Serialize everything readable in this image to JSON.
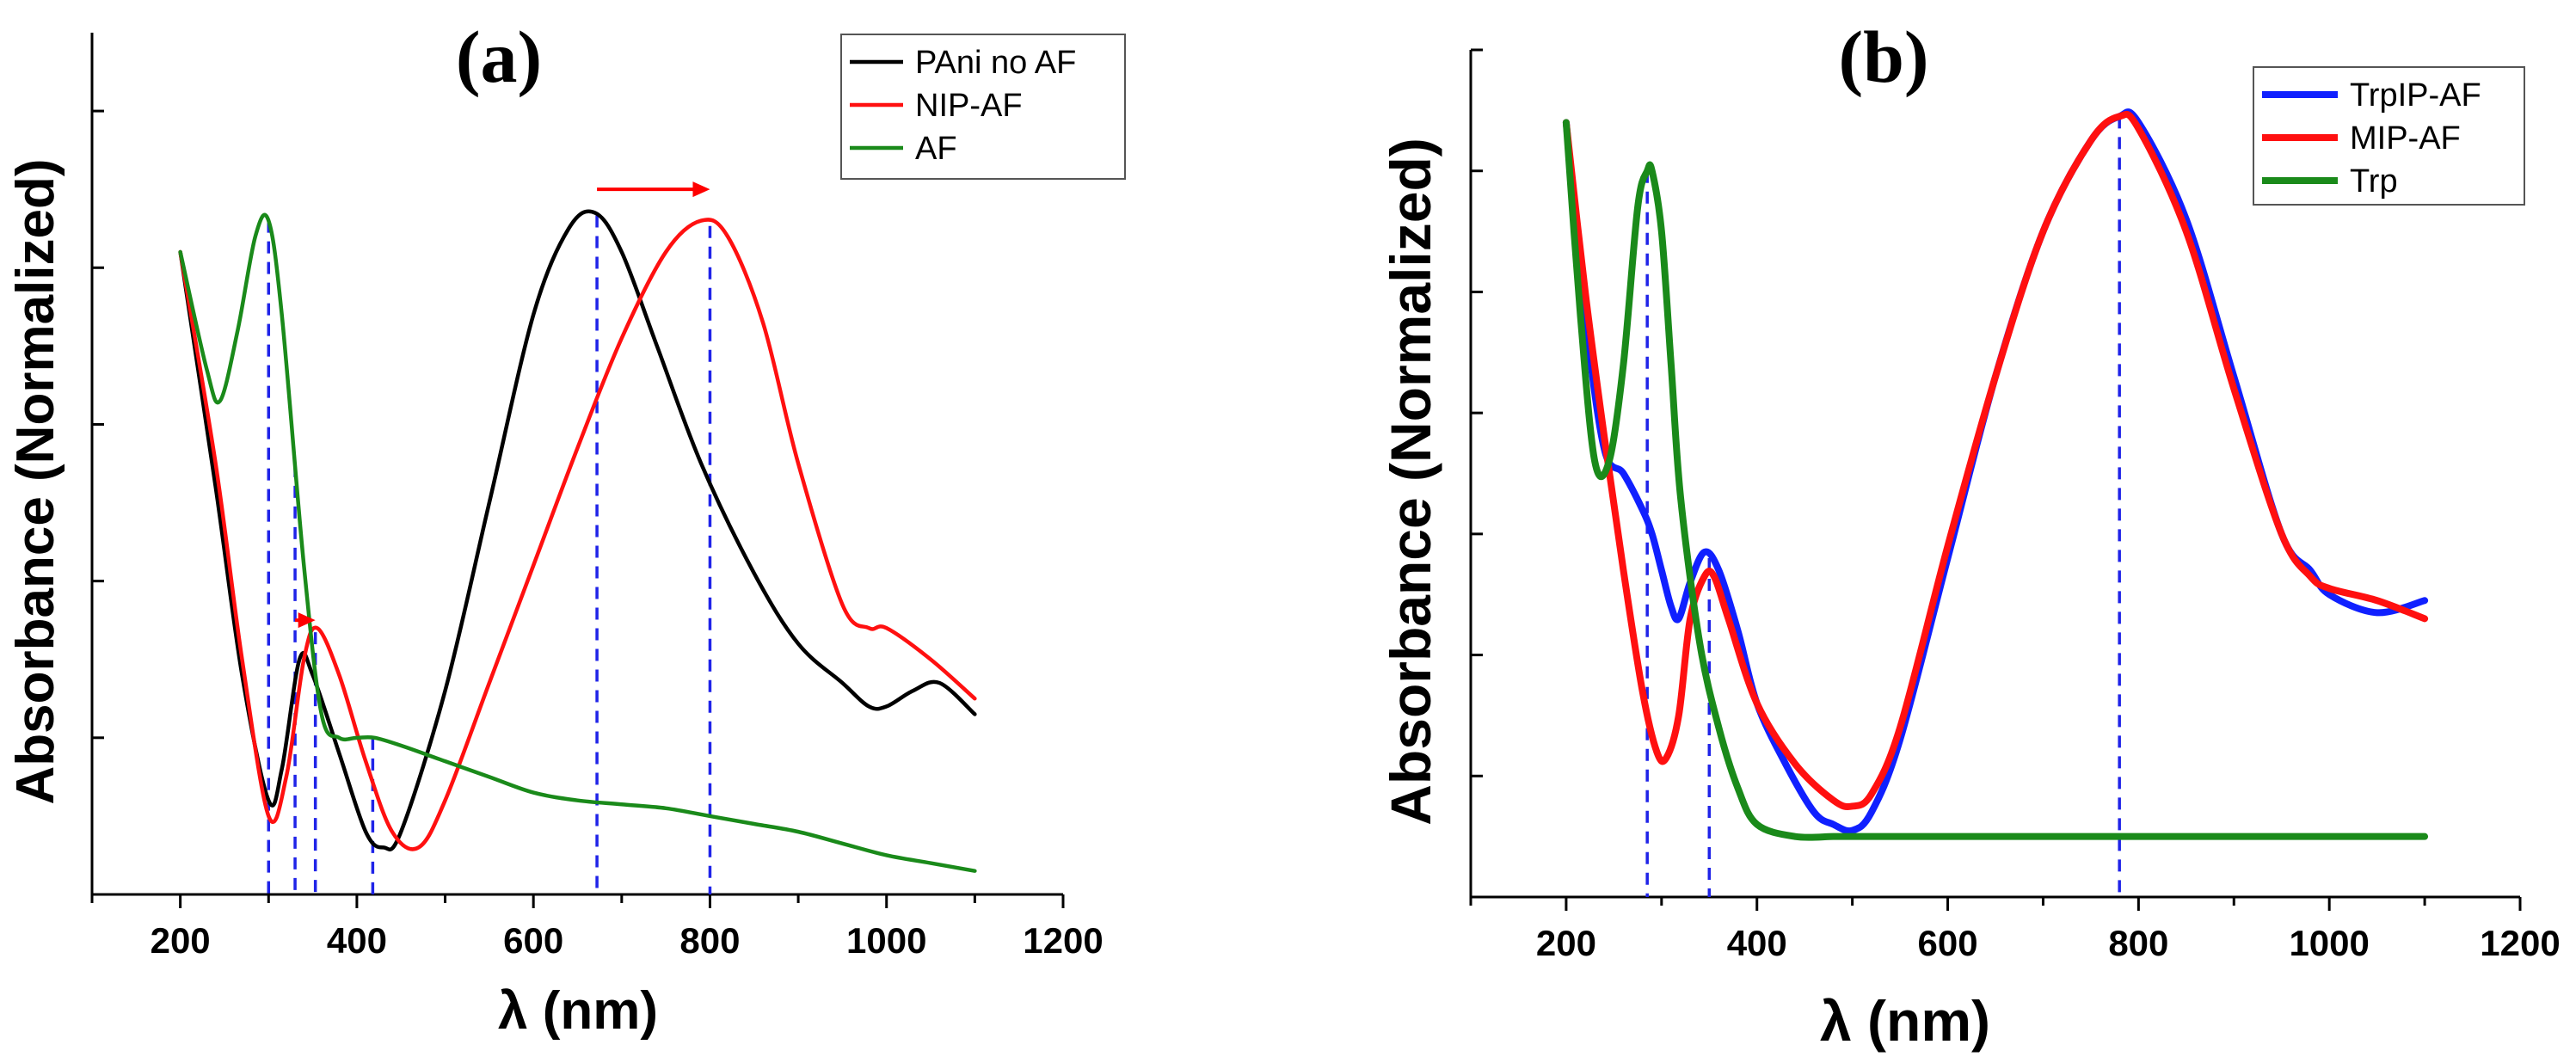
{
  "chart_data": [
    {
      "panel": "a",
      "type": "line",
      "title": "(a)",
      "xlabel": "λ (nm)",
      "ylabel": "Absorbance (Normalized)",
      "xlim": [
        100,
        1200
      ],
      "ylim": [
        0,
        1.1
      ],
      "xticks": [
        200,
        400,
        600,
        800,
        1000,
        1200
      ],
      "yticks_minor": [
        0.2,
        0.4,
        0.6,
        0.8,
        1.0
      ],
      "show_y_tick_labels": false,
      "legend_position": "top-right",
      "series": [
        {
          "name": "PAni no AF",
          "color": "#000000",
          "x": [
            200,
            240,
            270,
            300,
            315,
            335,
            350,
            380,
            410,
            430,
            450,
            500,
            550,
            600,
            640,
            670,
            700,
            740,
            790,
            850,
            900,
            950,
            980,
            1000,
            1030,
            1060,
            1100
          ],
          "y": [
            0.82,
            0.52,
            0.28,
            0.12,
            0.16,
            0.3,
            0.28,
            0.18,
            0.08,
            0.06,
            0.08,
            0.26,
            0.5,
            0.74,
            0.85,
            0.87,
            0.82,
            0.7,
            0.55,
            0.41,
            0.32,
            0.27,
            0.24,
            0.24,
            0.26,
            0.27,
            0.23
          ]
        },
        {
          "name": "NIP-AF",
          "color": "#ff1010",
          "x": [
            200,
            240,
            270,
            300,
            320,
            340,
            355,
            380,
            410,
            440,
            470,
            500,
            550,
            600,
            650,
            700,
            750,
            790,
            820,
            860,
            900,
            950,
            980,
            1000,
            1050,
            1100
          ],
          "y": [
            0.82,
            0.55,
            0.3,
            0.1,
            0.15,
            0.3,
            0.34,
            0.28,
            0.17,
            0.08,
            0.06,
            0.12,
            0.27,
            0.42,
            0.57,
            0.71,
            0.82,
            0.86,
            0.84,
            0.73,
            0.55,
            0.37,
            0.34,
            0.34,
            0.3,
            0.25
          ]
        },
        {
          "name": "AF",
          "color": "#1a8a1a",
          "x": [
            200,
            230,
            245,
            265,
            285,
            300,
            315,
            340,
            360,
            380,
            400,
            420,
            450,
            500,
            550,
            600,
            650,
            700,
            750,
            800,
            850,
            900,
            950,
            1000,
            1050,
            1100
          ],
          "y": [
            0.82,
            0.67,
            0.63,
            0.72,
            0.84,
            0.86,
            0.74,
            0.42,
            0.23,
            0.2,
            0.2,
            0.2,
            0.19,
            0.17,
            0.15,
            0.13,
            0.12,
            0.115,
            0.11,
            0.1,
            0.09,
            0.08,
            0.065,
            0.05,
            0.04,
            0.03
          ]
        }
      ],
      "reference_lines_nm": [
        300,
        330,
        353,
        418,
        672,
        800
      ],
      "shift_arrows": [
        {
          "from_nm": 330,
          "to_nm": 353,
          "y": 0.35
        },
        {
          "from_nm": 672,
          "to_nm": 800,
          "y": 0.9
        }
      ]
    },
    {
      "panel": "b",
      "type": "line",
      "title": "(b)",
      "xlabel": "λ (nm)",
      "ylabel": "Absorbance (Normalized)",
      "xlim": [
        100,
        1200
      ],
      "ylim": [
        0,
        0.7
      ],
      "xticks": [
        200,
        400,
        600,
        800,
        1000,
        1200
      ],
      "yticks_minor": [
        0.1,
        0.2,
        0.3,
        0.4,
        0.5,
        0.6,
        0.7
      ],
      "show_y_tick_labels": false,
      "legend_position": "top-right",
      "series": [
        {
          "name": "TrpIP-AF",
          "color": "#1020ff",
          "x": [
            200,
            220,
            240,
            260,
            280,
            290,
            300,
            310,
            318,
            330,
            345,
            360,
            380,
            400,
            430,
            460,
            480,
            500,
            520,
            550,
            600,
            650,
            700,
            750,
            780,
            800,
            850,
            900,
            950,
            980,
            1000,
            1050,
            1100
          ],
          "y": [
            0.64,
            0.48,
            0.37,
            0.35,
            0.32,
            0.3,
            0.27,
            0.24,
            0.23,
            0.26,
            0.285,
            0.27,
            0.22,
            0.16,
            0.11,
            0.07,
            0.06,
            0.055,
            0.07,
            0.13,
            0.28,
            0.43,
            0.55,
            0.625,
            0.645,
            0.64,
            0.56,
            0.43,
            0.3,
            0.27,
            0.25,
            0.235,
            0.245
          ]
        },
        {
          "name": "MIP-AF",
          "color": "#ff1010",
          "x": [
            200,
            220,
            240,
            260,
            280,
            295,
            305,
            318,
            330,
            345,
            355,
            370,
            400,
            440,
            480,
            500,
            520,
            550,
            600,
            650,
            700,
            750,
            780,
            800,
            850,
            900,
            950,
            980,
            1000,
            1050,
            1100
          ],
          "y": [
            0.64,
            0.5,
            0.38,
            0.27,
            0.17,
            0.12,
            0.115,
            0.15,
            0.23,
            0.265,
            0.265,
            0.23,
            0.16,
            0.11,
            0.08,
            0.075,
            0.085,
            0.14,
            0.29,
            0.43,
            0.55,
            0.625,
            0.645,
            0.635,
            0.55,
            0.42,
            0.3,
            0.265,
            0.255,
            0.245,
            0.23
          ]
        },
        {
          "name": "Trp",
          "color": "#1a8a1a",
          "x": [
            200,
            215,
            230,
            245,
            260,
            275,
            285,
            290,
            300,
            310,
            320,
            340,
            360,
            380,
            400,
            440,
            480,
            500,
            600,
            700,
            800,
            900,
            1000,
            1100
          ],
          "y": [
            0.64,
            0.48,
            0.36,
            0.36,
            0.44,
            0.57,
            0.6,
            0.6,
            0.55,
            0.44,
            0.33,
            0.21,
            0.14,
            0.09,
            0.06,
            0.05,
            0.05,
            0.05,
            0.05,
            0.05,
            0.05,
            0.05,
            0.05,
            0.05
          ]
        }
      ],
      "reference_lines_nm": [
        285,
        350,
        780
      ]
    }
  ]
}
